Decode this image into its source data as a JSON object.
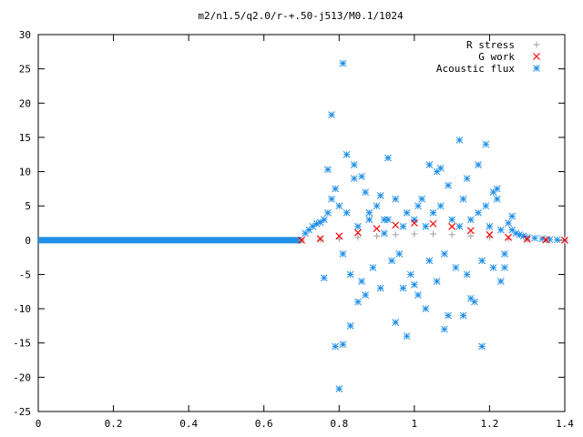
{
  "chart_data": {
    "type": "scatter",
    "title": "m2/n1.5/q2.0/r-+.50-j513/M0.1/1024",
    "xlim": [
      0,
      1.4
    ],
    "ylim": [
      -25,
      30
    ],
    "x_ticks": [
      0,
      0.2,
      0.4,
      0.6,
      0.8,
      1,
      1.2,
      1.4
    ],
    "y_ticks": [
      -25,
      -20,
      -15,
      -10,
      -5,
      0,
      5,
      10,
      15,
      20,
      25,
      30
    ],
    "grid": false,
    "legend_position": "top-right",
    "series": [
      {
        "name": "R stress",
        "marker": "plus",
        "color": "#a0a0a0",
        "x": [
          0.7,
          0.75,
          0.8,
          0.85,
          0.9,
          0.95,
          1.0,
          1.05,
          1.1,
          1.15,
          1.2,
          1.25,
          1.3,
          1.35,
          1.4
        ],
        "y": [
          0.0,
          0.1,
          0.2,
          0.4,
          0.6,
          0.8,
          0.9,
          0.9,
          0.8,
          0.6,
          0.4,
          0.2,
          0.1,
          0.05,
          0.0
        ]
      },
      {
        "name": "G work",
        "marker": "cross",
        "color": "#ff0000",
        "x": [
          0.7,
          0.75,
          0.8,
          0.85,
          0.9,
          0.95,
          1.0,
          1.05,
          1.1,
          1.15,
          1.2,
          1.25,
          1.3,
          1.35,
          1.4
        ],
        "y": [
          0.0,
          0.2,
          0.6,
          1.1,
          1.7,
          2.2,
          2.5,
          2.4,
          2.0,
          1.4,
          0.8,
          0.4,
          0.15,
          0.05,
          0.0
        ]
      },
      {
        "name": "Acoustic flux",
        "marker": "star",
        "color": "#1f8fe8",
        "baseline": {
          "x_range": [
            0,
            0.7
          ],
          "y": 0
        },
        "x": [
          0.7,
          0.71,
          0.72,
          0.73,
          0.74,
          0.75,
          0.76,
          0.77,
          0.78,
          0.79,
          0.8,
          0.81,
          0.82,
          0.83,
          0.84,
          0.85,
          0.86,
          0.87,
          0.88,
          0.89,
          0.9,
          0.91,
          0.92,
          0.93,
          0.94,
          0.95,
          0.96,
          0.97,
          0.98,
          0.99,
          1.0,
          1.01,
          1.02,
          1.03,
          1.04,
          1.05,
          1.06,
          1.07,
          1.08,
          1.09,
          1.1,
          1.11,
          1.12,
          1.13,
          1.14,
          1.15,
          1.16,
          1.17,
          1.18,
          1.19,
          1.2,
          1.21,
          1.22,
          1.23,
          1.24,
          1.25,
          1.26,
          1.27,
          1.28,
          1.29,
          1.3,
          1.32,
          1.34,
          1.36,
          1.38,
          1.4,
          0.78,
          0.81,
          0.8,
          0.81,
          0.79,
          0.82,
          0.84,
          0.77,
          0.86,
          0.88,
          0.92,
          0.95,
          0.98,
          1.01,
          1.03,
          1.06,
          1.09,
          1.12,
          1.14,
          1.17,
          1.19,
          1.21,
          1.23,
          0.83,
          0.87,
          0.91,
          0.97,
          1.04,
          1.08,
          1.13,
          1.18,
          1.24,
          0.76,
          0.85,
          0.93,
          1.0,
          1.07,
          1.15,
          1.22,
          1.26
        ],
        "y": [
          0.0,
          1.0,
          1.5,
          2.0,
          2.4,
          2.6,
          3.0,
          4.0,
          6.0,
          7.5,
          5.0,
          -2.0,
          4.0,
          -5.0,
          9.0,
          2.0,
          -6.0,
          7.0,
          3.0,
          -4.0,
          5.0,
          -7.0,
          1.0,
          3.0,
          -3.0,
          6.0,
          -2.0,
          2.0,
          4.0,
          -5.0,
          3.0,
          -8.0,
          6.0,
          2.0,
          -3.0,
          4.0,
          -6.0,
          5.0,
          -2.0,
          8.0,
          3.0,
          -4.0,
          2.0,
          6.0,
          -5.0,
          3.0,
          -9.0,
          4.0,
          -3.0,
          5.0,
          2.0,
          -4.0,
          6.0,
          1.5,
          -2.0,
          2.5,
          1.5,
          1.0,
          0.8,
          0.6,
          0.4,
          0.3,
          0.2,
          0.1,
          0.05,
          0.0,
          18.3,
          25.8,
          -21.7,
          -15.2,
          -15.5,
          12.5,
          11.0,
          10.3,
          9.3,
          4.0,
          3.0,
          -12.0,
          -14.0,
          5.0,
          -10.0,
          10.0,
          -11.0,
          14.6,
          9.0,
          11.0,
          14.0,
          7.0,
          -6.0,
          -12.5,
          -8.0,
          6.5,
          -7.0,
          11.0,
          -13.0,
          -11.0,
          -15.5,
          -4.0,
          -5.5,
          -9.0,
          12.0,
          -6.5,
          10.5,
          -8.5,
          7.5,
          3.5
        ]
      }
    ]
  }
}
